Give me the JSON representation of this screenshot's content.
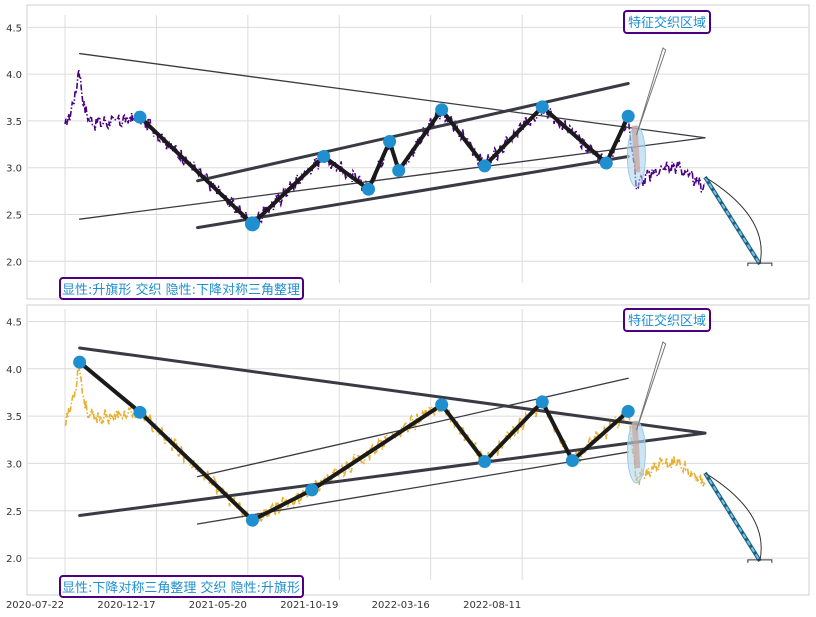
{
  "chart_data": [
    {
      "type": "line",
      "panel": "top",
      "ylim": [
        1.8,
        4.6
      ],
      "yticks": [
        "2.0",
        "2.5",
        "3.0",
        "3.5",
        "4.0",
        "4.5"
      ],
      "price_color": "#4b0082",
      "annotation": "特征交织区域",
      "caption": "显性:升旗形 交织 隐性:下降对称三角整理",
      "pivots": [
        {
          "x": 82,
          "y": 3.54
        },
        {
          "x": 205,
          "y": 2.4
        },
        {
          "x": 283,
          "y": 3.12
        },
        {
          "x": 332,
          "y": 2.77
        },
        {
          "x": 355,
          "y": 3.28
        },
        {
          "x": 365,
          "y": 2.97
        },
        {
          "x": 412,
          "y": 3.62
        },
        {
          "x": 459,
          "y": 3.02
        },
        {
          "x": 522,
          "y": 3.65
        },
        {
          "x": 592,
          "y": 3.05
        },
        {
          "x": 616,
          "y": 3.55
        }
      ]
    },
    {
      "type": "line",
      "panel": "bottom",
      "ylim": [
        1.8,
        4.6
      ],
      "yticks": [
        "2.0",
        "2.5",
        "3.0",
        "3.5",
        "4.0",
        "4.5"
      ],
      "price_color": "#e8b030",
      "annotation": "特征交织区域",
      "caption": "显性:下降对称三角整理 交织 隐性:升旗形",
      "pivots": [
        {
          "x": 16,
          "y": 4.07
        },
        {
          "x": 82,
          "y": 3.54
        },
        {
          "x": 205,
          "y": 2.4
        },
        {
          "x": 270,
          "y": 2.72
        },
        {
          "x": 412,
          "y": 3.62
        },
        {
          "x": 459,
          "y": 3.02
        },
        {
          "x": 522,
          "y": 3.65
        },
        {
          "x": 555,
          "y": 3.03
        },
        {
          "x": 616,
          "y": 3.55
        }
      ]
    }
  ],
  "x_ticks": [
    "2020-07-22",
    "2020-12-17",
    "2021-05-20",
    "2021-10-19",
    "2022-03-16",
    "2022-08-11"
  ]
}
